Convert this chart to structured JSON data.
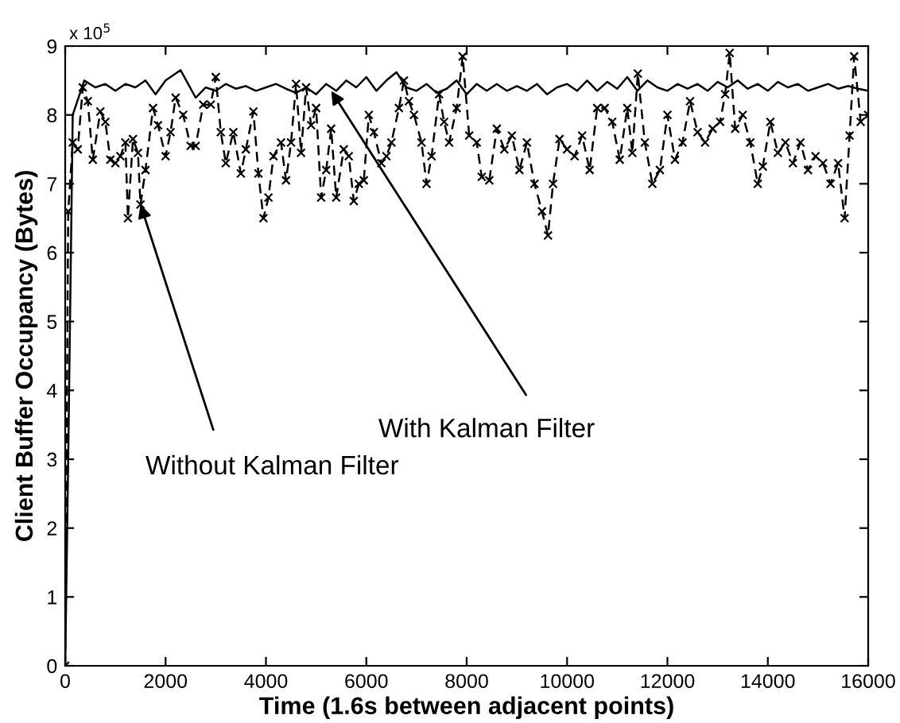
{
  "chart_data": {
    "type": "line",
    "xlabel": "Time (1.6s between adjacent points)",
    "ylabel": "Client Buffer Occupancy (Bytes)",
    "xlim": [
      0,
      16000
    ],
    "xticks": [
      0,
      2000,
      4000,
      6000,
      8000,
      10000,
      12000,
      14000,
      16000
    ],
    "ylim": [
      0,
      9
    ],
    "yticks": [
      0,
      1,
      2,
      3,
      4,
      5,
      6,
      7,
      8,
      9
    ],
    "grid": false,
    "annotations": [
      "x 10$^{5}$",
      {
        "text": "With Kalman Filter",
        "x": 5300,
        "y": 8.35
      },
      {
        "text": "Without Kalman Filter",
        "x": 1500,
        "y": 6.7
      }
    ],
    "series": [
      {
        "color": "#000000",
        "line_style": "solid",
        "marker": "none",
        "x": [
          0,
          60,
          150,
          380,
          600,
          800,
          1000,
          1200,
          1400,
          1600,
          1800,
          2000,
          2300,
          2600,
          2800,
          3000,
          3200,
          3400,
          3600,
          3800,
          4000,
          4200,
          4400,
          4600,
          4800,
          5000,
          5200,
          5400,
          5600,
          5800,
          6000,
          6200,
          6400,
          6600,
          6800,
          7000,
          7200,
          7400,
          7600,
          7800,
          8000,
          8200,
          8400,
          8600,
          8800,
          9000,
          9200,
          9400,
          9600,
          9800,
          10000,
          10200,
          10400,
          10600,
          10800,
          11000,
          11200,
          11400,
          11600,
          11800,
          12000,
          12200,
          12400,
          12600,
          12800,
          13000,
          13200,
          13400,
          13600,
          13800,
          14000,
          14200,
          14400,
          14600,
          14800,
          15000,
          15200,
          15400,
          15600,
          15800,
          16000
        ],
        "values": [
          0,
          3.0,
          8.0,
          8.5,
          8.4,
          8.45,
          8.35,
          8.45,
          8.4,
          8.5,
          8.3,
          8.5,
          8.65,
          8.25,
          8.4,
          8.35,
          8.45,
          8.38,
          8.42,
          8.35,
          8.4,
          8.45,
          8.38,
          8.32,
          8.4,
          8.3,
          8.45,
          8.35,
          8.5,
          8.4,
          8.55,
          8.35,
          8.5,
          8.62,
          8.4,
          8.35,
          8.45,
          8.32,
          8.38,
          8.5,
          8.3,
          8.45,
          8.35,
          8.45,
          8.35,
          8.42,
          8.35,
          8.45,
          8.3,
          8.4,
          8.45,
          8.35,
          8.5,
          8.35,
          8.48,
          8.38,
          8.55,
          8.35,
          8.5,
          8.4,
          8.35,
          8.45,
          8.38,
          8.45,
          8.35,
          8.48,
          8.4,
          8.5,
          8.38,
          8.45,
          8.35,
          8.48,
          8.4,
          8.45,
          8.35,
          8.4,
          8.45,
          8.38,
          8.42,
          8.38,
          8.35
        ]
      },
      {
        "color": "#000000",
        "line_style": "dashed",
        "marker": "cross",
        "x": [
          0,
          60,
          150,
          250,
          350,
          450,
          550,
          700,
          800,
          900,
          1000,
          1100,
          1200,
          1250,
          1350,
          1450,
          1500,
          1600,
          1750,
          1850,
          2000,
          2100,
          2200,
          2350,
          2500,
          2600,
          2750,
          2900,
          3000,
          3100,
          3200,
          3350,
          3500,
          3600,
          3750,
          3850,
          3950,
          4050,
          4150,
          4300,
          4400,
          4500,
          4600,
          4700,
          4800,
          4900,
          5000,
          5100,
          5200,
          5300,
          5400,
          5550,
          5650,
          5750,
          5850,
          5950,
          6050,
          6150,
          6300,
          6400,
          6500,
          6650,
          6750,
          6850,
          6950,
          7100,
          7200,
          7300,
          7450,
          7550,
          7650,
          7800,
          7920,
          8050,
          8200,
          8300,
          8450,
          8600,
          8750,
          8900,
          9050,
          9200,
          9350,
          9500,
          9620,
          9720,
          9850,
          10000,
          10150,
          10300,
          10450,
          10600,
          10750,
          10900,
          11050,
          11200,
          11300,
          11410,
          11550,
          11700,
          11850,
          12000,
          12150,
          12300,
          12450,
          12600,
          12750,
          12900,
          13050,
          13150,
          13240,
          13350,
          13500,
          13650,
          13800,
          13900,
          14050,
          14200,
          14350,
          14500,
          14650,
          14800,
          14950,
          15100,
          15250,
          15400,
          15530,
          15630,
          15720,
          15850,
          16000
        ],
        "values": [
          0,
          6.6,
          7.6,
          7.5,
          8.4,
          8.2,
          7.35,
          8.05,
          7.9,
          7.35,
          7.3,
          7.4,
          7.6,
          6.5,
          7.65,
          7.45,
          6.7,
          7.2,
          8.1,
          7.85,
          7.4,
          7.75,
          8.25,
          8.0,
          7.55,
          7.55,
          8.15,
          8.15,
          8.55,
          7.75,
          7.3,
          7.75,
          7.15,
          7.5,
          8.05,
          7.15,
          6.5,
          6.8,
          7.4,
          7.6,
          7.05,
          7.6,
          8.45,
          7.45,
          8.4,
          7.85,
          8.1,
          6.8,
          7.2,
          7.8,
          6.8,
          7.5,
          7.4,
          6.75,
          7.0,
          7.05,
          8.0,
          7.75,
          7.3,
          7.4,
          7.6,
          8.1,
          8.5,
          8.2,
          8.0,
          7.6,
          7.0,
          7.4,
          8.3,
          7.9,
          7.6,
          8.1,
          8.85,
          7.7,
          7.6,
          7.1,
          7.05,
          7.8,
          7.5,
          7.7,
          7.2,
          7.6,
          7.0,
          6.6,
          6.25,
          7.0,
          7.65,
          7.5,
          7.4,
          7.7,
          7.2,
          8.1,
          8.1,
          7.9,
          7.35,
          8.1,
          7.45,
          8.6,
          7.6,
          7.0,
          7.2,
          8.0,
          7.35,
          7.6,
          8.2,
          7.75,
          7.6,
          7.8,
          7.9,
          8.3,
          8.9,
          7.8,
          8.0,
          7.6,
          7.0,
          7.25,
          7.9,
          7.45,
          7.6,
          7.3,
          7.6,
          7.2,
          7.4,
          7.3,
          7.0,
          7.3,
          6.5,
          7.7,
          8.85,
          7.9,
          8.0
        ]
      }
    ]
  }
}
